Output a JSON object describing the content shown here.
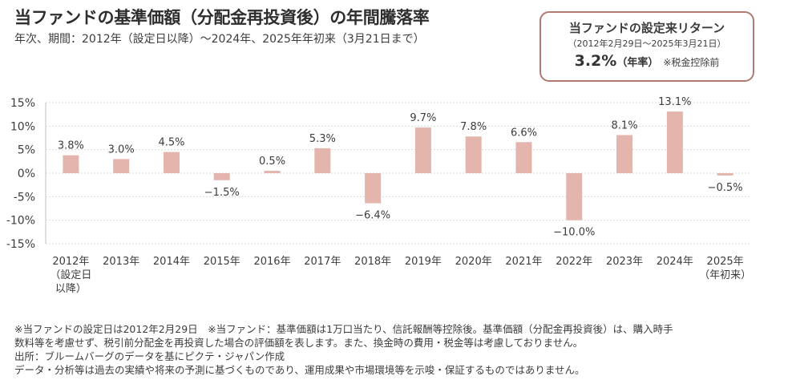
{
  "header": {
    "title": "当ファンドの基準価額（分配金再投資後）の年間騰落率",
    "subtitle": "年次、期間：2012年（設定日以降）〜2024年、2025年年初来（3月21日まで）"
  },
  "return_box": {
    "title": "当ファンドの設定来リターン",
    "period": "（2012年2月29日〜2025年3月21日）",
    "value": "3.2%",
    "unit": "（年率）",
    "note": "※税金控除前"
  },
  "chart_data": {
    "type": "bar",
    "categories": [
      "2012年（設定日以降）",
      "2013年",
      "2014年",
      "2015年",
      "2016年",
      "2017年",
      "2018年",
      "2019年",
      "2020年",
      "2021年",
      "2022年",
      "2023年",
      "2024年",
      "2025年（年初来）"
    ],
    "category_lines": [
      [
        "2012年",
        "（設定日",
        "以降）"
      ],
      [
        "2013年"
      ],
      [
        "2014年"
      ],
      [
        "2015年"
      ],
      [
        "2016年"
      ],
      [
        "2017年"
      ],
      [
        "2018年"
      ],
      [
        "2019年"
      ],
      [
        "2020年"
      ],
      [
        "2021年"
      ],
      [
        "2022年"
      ],
      [
        "2023年"
      ],
      [
        "2024年"
      ],
      [
        "2025年",
        "（年初来）"
      ]
    ],
    "values": [
      3.8,
      3.0,
      4.5,
      -1.5,
      0.5,
      5.3,
      -6.4,
      9.7,
      7.8,
      6.6,
      -10.0,
      8.1,
      13.1,
      -0.5
    ],
    "data_labels": [
      "3.8%",
      "3.0%",
      "4.5%",
      "−1.5%",
      "0.5%",
      "5.3%",
      "−6.4%",
      "9.7%",
      "7.8%",
      "6.6%",
      "−10.0%",
      "8.1%",
      "13.1%",
      "−0.5%"
    ],
    "y_ticks": [
      15,
      10,
      5,
      0,
      -5,
      -10,
      -15
    ],
    "y_tick_labels": [
      "15%",
      "10%",
      "5%",
      "0%",
      "-5%",
      "-10%",
      "-15%"
    ],
    "ylim": [
      -15,
      15
    ],
    "grid": true,
    "bar_color": "#e3b5ac",
    "grid_color": "#d9d9d9",
    "label_color": "#3c3c3c"
  },
  "notes": [
    "※当ファンドの設定日は2012年2月29日　※当ファンド：基準価額は1万口当たり、信託報酬等控除後。基準価額（分配金再投資後）は、購入時手",
    "数料等を考慮せず、税引前分配金を再投資した場合の評価額を表します。また、換金時の費用・税金等は考慮しておりません。",
    "出所：ブルームバーグのデータを基にピクテ・ジャパン作成",
    "データ・分析等は過去の実績や将来の予測に基づくものであり、運用成果や市場環境等を示唆・保証するものではありません。"
  ]
}
